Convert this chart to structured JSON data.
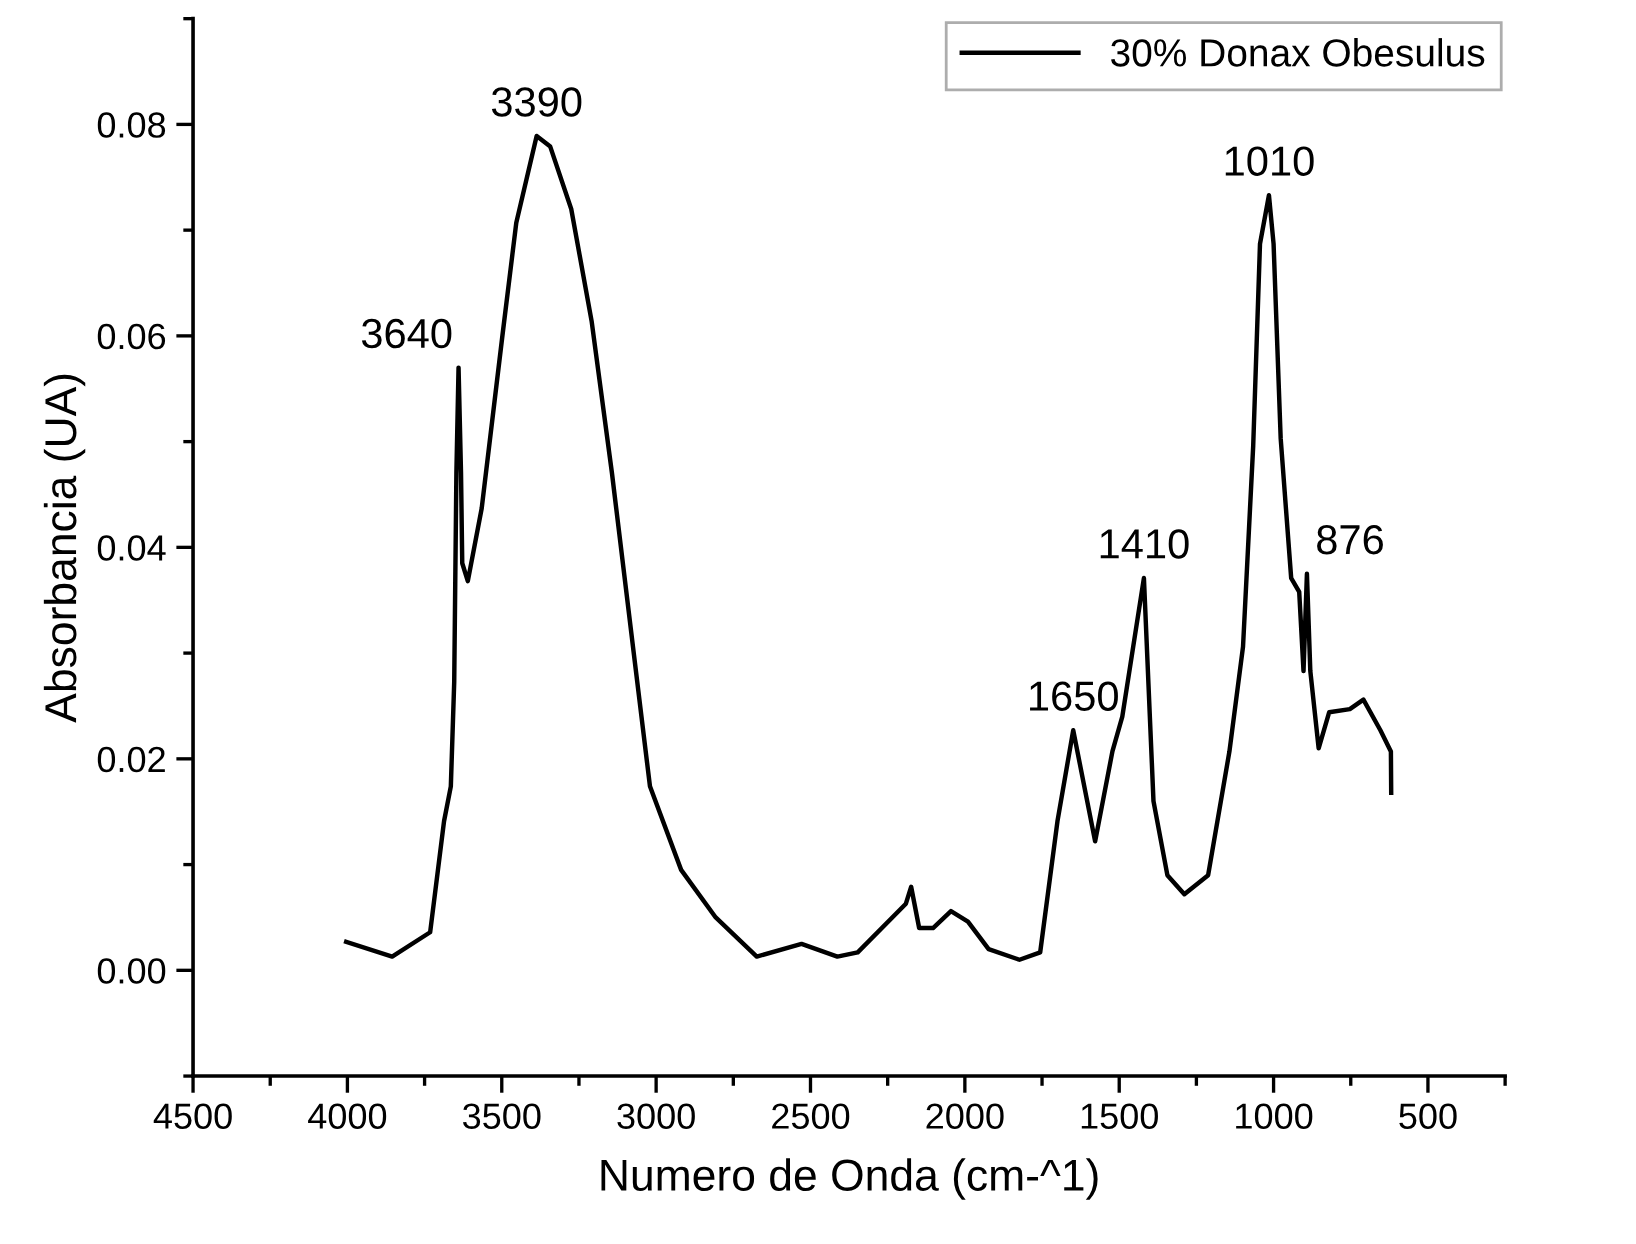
{
  "chart_data": {
    "type": "line",
    "xlabel": "Numero de Onda (cm-^1)",
    "ylabel": "Absorbancia (UA)",
    "xlim": [
      4500,
      250
    ],
    "xticks": [
      4500,
      4000,
      3500,
      3000,
      2500,
      2000,
      1500,
      1000,
      500
    ],
    "ylim": [
      -0.01,
      0.09
    ],
    "yticks": [
      {
        "value": 0.0,
        "label": "0.00"
      },
      {
        "value": 0.02,
        "label": "0.02"
      },
      {
        "value": 0.04,
        "label": "0.04"
      },
      {
        "value": 0.06,
        "label": "0.06"
      },
      {
        "value": 0.08,
        "label": "0.08"
      }
    ],
    "grid": false,
    "legend": "top right",
    "marker": "none",
    "line_style": "solid",
    "series": [
      {
        "name": "30% Donax Obesulus",
        "color": "#000000",
        "x": [
          4004,
          3855,
          3732,
          3687,
          3665,
          3654,
          3647,
          3640,
          3632,
          3628,
          3610,
          3565,
          3498,
          3453,
          3387,
          3343,
          3275,
          3209,
          3143,
          3075,
          3020,
          2919,
          2807,
          2674,
          2529,
          2413,
          2347,
          2191,
          2174,
          2148,
          2103,
          2045,
          1990,
          1923,
          1823,
          1756,
          1700,
          1649,
          1578,
          1522,
          1490,
          1420,
          1389,
          1344,
          1289,
          1212,
          1143,
          1099,
          1066,
          1044,
          1015,
          1000,
          977,
          943,
          917,
          903,
          892,
          881,
          854,
          820,
          753,
          709,
          654,
          620,
          619
        ],
        "values": [
          0.0027,
          0.0013,
          0.0036,
          0.0141,
          0.0174,
          0.0273,
          0.047,
          0.057,
          0.047,
          0.0385,
          0.0368,
          0.0437,
          0.06,
          0.0707,
          0.0789,
          0.0779,
          0.072,
          0.0614,
          0.047,
          0.0306,
          0.0174,
          0.0095,
          0.005,
          0.0013,
          0.0025,
          0.0013,
          0.0017,
          0.0063,
          0.0079,
          0.004,
          0.004,
          0.0056,
          0.0046,
          0.002,
          0.001,
          0.0017,
          0.0141,
          0.0227,
          0.0122,
          0.0207,
          0.024,
          0.0371,
          0.016,
          0.009,
          0.0072,
          0.009,
          0.0207,
          0.0306,
          0.0496,
          0.0687,
          0.0733,
          0.0687,
          0.0503,
          0.0371,
          0.0358,
          0.0283,
          0.0375,
          0.0283,
          0.021,
          0.0244,
          0.0247,
          0.0256,
          0.0227,
          0.0207,
          0.0168
        ]
      }
    ],
    "annotations": [
      {
        "text": "3640",
        "x": 3640,
        "y": 0.057
      },
      {
        "text": "3390",
        "x": 3387,
        "y": 0.0789
      },
      {
        "text": "1650",
        "x": 1649,
        "y": 0.0227
      },
      {
        "text": "1410",
        "x": 1420,
        "y": 0.0371
      },
      {
        "text": "1010",
        "x": 1015,
        "y": 0.0733
      },
      {
        "text": "876",
        "x": 892,
        "y": 0.0375
      }
    ]
  }
}
